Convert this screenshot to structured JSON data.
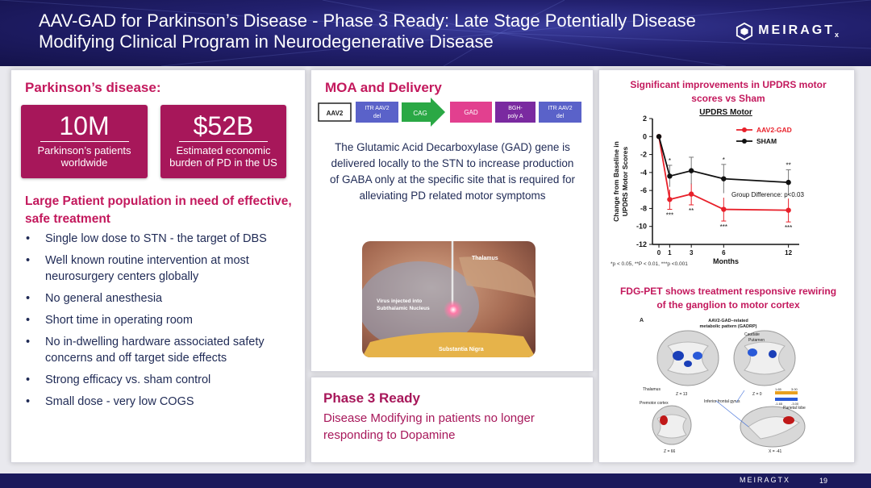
{
  "header": {
    "title": "AAV-GAD for Parkinson’s Disease - Phase 3 Ready: Late Stage Potentially Disease Modifying Clinical Program in Neurodegenerative Disease",
    "logo": "MEIRAGT",
    "logo_sub": "x"
  },
  "left": {
    "heading": "Parkinson’s disease:",
    "stats": [
      {
        "value": "10M",
        "label": "Parkinson’s patients worldwide"
      },
      {
        "value": "$52B",
        "label": "Estimated economic burden of PD in the US"
      }
    ],
    "subheading": "Large Patient population in need of effective, safe treatment",
    "bullets": [
      "Single low dose to STN - the target of DBS",
      "Well known routine intervention at most neurosurgery centers globally",
      "No general anesthesia",
      "Short time in operating room",
      "No in-dwelling hardware associated safety concerns and off target side effects",
      "Strong efficacy vs. sham control",
      "Small dose - very low COGS"
    ]
  },
  "moa": {
    "heading": "MOA and Delivery",
    "construct": [
      "AAV2",
      "ITR AAV2 del",
      "CAG",
      "GAD",
      "BGH-poly A",
      "ITR AAV2 del"
    ],
    "text": "The Glutamic Acid Decarboxylase (GAD) gene is delivered locally to the STN to increase production of GABA only at the specific site that is required for alleviating PD related motor symptoms",
    "brain_labels": [
      "Thalamus",
      "Virus injected into Subthalamic Nucleus",
      "Substantia Nigra"
    ]
  },
  "phase": {
    "heading": "Phase 3 Ready",
    "text": "Disease Modifying in patients no longer responding to Dopamine"
  },
  "right": {
    "heading": "Significant improvements in UPDRS motor scores vs Sham",
    "fdg_heading": "FDG-PET shows treatment responsive rewiring of the ganglion to motor cortex",
    "pet": {
      "panel_letter": "A",
      "title": "AAV2-GAD–related metabolic pattern (GADRP)",
      "labels": [
        "Caudate",
        "Putamen",
        "Thalamus",
        "Z = 13",
        "Z = 0",
        "Inferior frontal gyrus",
        "Premotor cortex",
        "Parietal lobe",
        "Z = 66",
        "X = -41"
      ],
      "scale": [
        "1.65",
        "3.00",
        "-1.65",
        "-3.00"
      ]
    }
  },
  "chart_data": {
    "type": "line",
    "title": "UPDRS Motor",
    "xlabel": "Months",
    "ylabel": "Change from Baseline in UPDRS Motor Scores",
    "x": [
      0,
      1,
      3,
      6,
      12
    ],
    "xticks": [
      0,
      1,
      3,
      6,
      12
    ],
    "yticks": [
      2,
      0,
      -2,
      -4,
      -6,
      -8,
      -10,
      -12
    ],
    "ylim": [
      -12,
      2
    ],
    "legend_position": "top-right",
    "series": [
      {
        "name": "AAV2-GAD",
        "color": "#e8202a",
        "values": [
          0,
          -7.0,
          -6.4,
          -8.1,
          -8.2
        ],
        "err": [
          0,
          1.1,
          1.2,
          1.3,
          1.3
        ],
        "sig": [
          "",
          "***",
          "**",
          "***",
          "***"
        ]
      },
      {
        "name": "SHAM",
        "color": "#111111",
        "values": [
          0,
          -4.4,
          -3.8,
          -4.7,
          -5.1
        ],
        "err": [
          0,
          1.2,
          1.5,
          1.6,
          1.4
        ],
        "sig": [
          "",
          "*",
          "",
          "*",
          "**"
        ]
      }
    ],
    "annotation": "Group Difference: p<0.03",
    "footnote": "*p < 0.05, **P < 0.01, ***p <0.001"
  },
  "footer": {
    "logo": "MEIRAGTX",
    "page": "19"
  }
}
